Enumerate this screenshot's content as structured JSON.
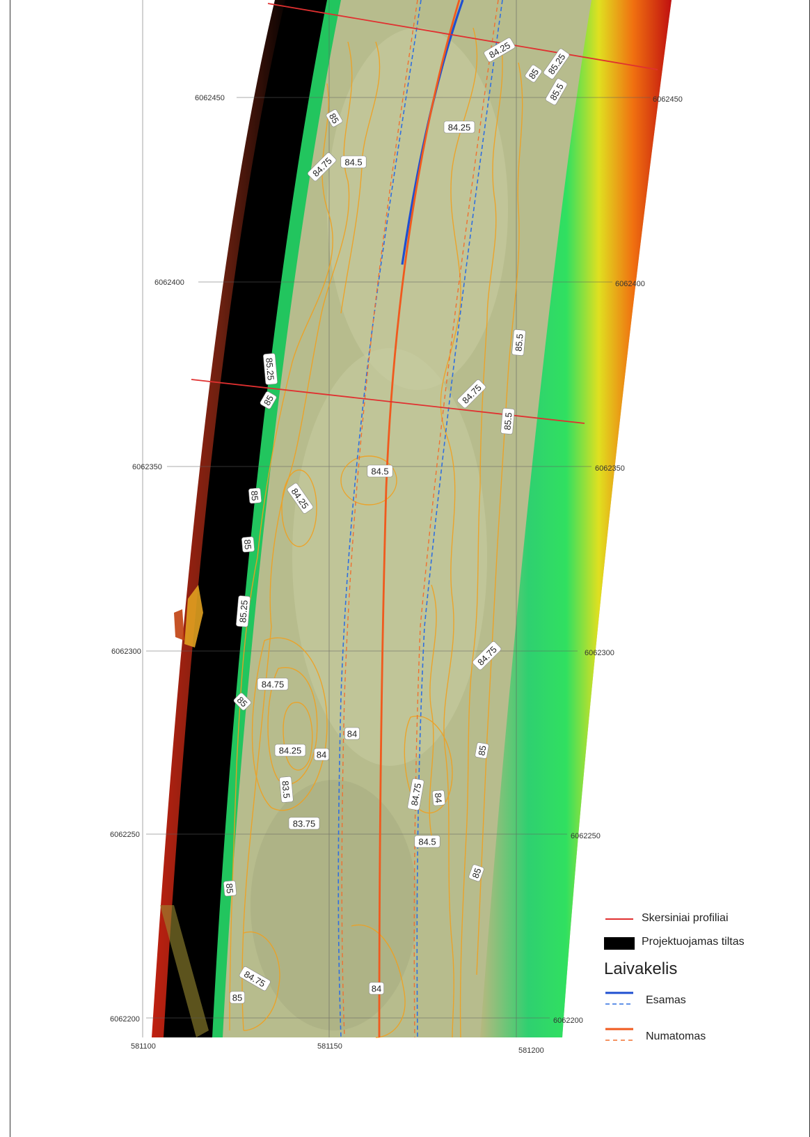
{
  "map": {
    "northing_labels": [
      "6062450",
      "6062400",
      "6062350",
      "6062300",
      "6062250",
      "6062200"
    ],
    "easting_labels": [
      "581100",
      "581150",
      "581200"
    ],
    "contour_labels": [
      {
        "text": "84.25"
      },
      {
        "text": "85.25"
      },
      {
        "text": "85"
      },
      {
        "text": "85.5"
      },
      {
        "text": "85"
      },
      {
        "text": "84.25"
      },
      {
        "text": "84.75"
      },
      {
        "text": "84.5"
      },
      {
        "text": "85.5"
      },
      {
        "text": "85.25"
      },
      {
        "text": "85"
      },
      {
        "text": "84.75"
      },
      {
        "text": "85.5"
      },
      {
        "text": "84.5"
      },
      {
        "text": "85"
      },
      {
        "text": "84.25"
      },
      {
        "text": "85"
      },
      {
        "text": "85.25"
      },
      {
        "text": "84.75"
      },
      {
        "text": "84.75"
      },
      {
        "text": "85"
      },
      {
        "text": "84"
      },
      {
        "text": "84.25"
      },
      {
        "text": "84"
      },
      {
        "text": "85"
      },
      {
        "text": "83.5"
      },
      {
        "text": "84.75"
      },
      {
        "text": "84"
      },
      {
        "text": "83.75"
      },
      {
        "text": "84.5"
      },
      {
        "text": "85"
      },
      {
        "text": "85"
      },
      {
        "text": "84.75"
      },
      {
        "text": "85"
      },
      {
        "text": "84"
      }
    ],
    "colors": {
      "bridge": "#000000",
      "cross_profiles": "#e03030",
      "existing_channel": "#1f4fd0",
      "planned_channel": "#f05a1e",
      "contours": "#f0a020",
      "bank_green": "#1fd060",
      "bank_red": "#e01010"
    }
  },
  "legend": {
    "cross_profiles": "Skersiniai profiliai",
    "bridge": "Projektuojamas tiltas",
    "title": "Laivakelis",
    "existing": "Esamas",
    "planned": "Numatomas"
  }
}
